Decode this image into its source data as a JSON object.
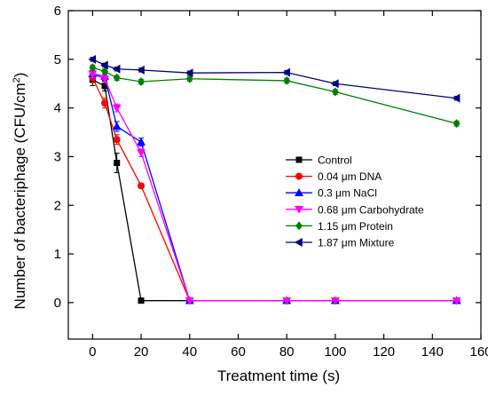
{
  "chart_data": {
    "type": "line",
    "xlabel": "Treatment time (s)",
    "ylabel_parts": [
      "Number of bacteriphage (CFU/cm",
      "2",
      ")"
    ],
    "xlim": [
      -10,
      160
    ],
    "ylim": [
      -0.75,
      6
    ],
    "xticks": [
      0,
      20,
      40,
      60,
      80,
      100,
      120,
      140,
      160
    ],
    "yticks": [
      0,
      1,
      2,
      3,
      4,
      5,
      6
    ],
    "legend_position": "center-right",
    "grid": false,
    "series": [
      {
        "name": "Control",
        "color": "#000000",
        "marker": "square",
        "x": [
          0,
          5,
          10,
          20,
          40,
          80,
          100,
          150
        ],
        "y": [
          4.58,
          4.45,
          2.87,
          0.04,
          0.04,
          0.04,
          0.04,
          0.04
        ],
        "error": [
          0.12,
          0.1,
          0.2,
          0,
          0,
          0,
          0,
          0
        ]
      },
      {
        "name": "0.04 μm DNA",
        "color": "#ff0000",
        "marker": "circle",
        "x": [
          0,
          5,
          10,
          20,
          40,
          80,
          100,
          150
        ],
        "y": [
          4.62,
          4.1,
          3.35,
          2.4,
          0.04,
          0.04,
          0.04,
          0.04
        ],
        "error": [
          0.1,
          0.1,
          0.1,
          0.05,
          0,
          0,
          0,
          0
        ]
      },
      {
        "name": "0.3 μm NaCl",
        "color": "#0000ff",
        "marker": "triangle-up",
        "x": [
          0,
          5,
          10,
          20,
          40,
          80,
          100,
          150
        ],
        "y": [
          4.7,
          4.65,
          3.62,
          3.3,
          0.04,
          0.04,
          0.04,
          0.04
        ],
        "error": [
          0.08,
          0.08,
          0.1,
          0.08,
          0,
          0,
          0,
          0
        ]
      },
      {
        "name": "0.68 μm Carbohydrate",
        "color": "#ff00ff",
        "marker": "triangle-down",
        "x": [
          0,
          5,
          10,
          20,
          40,
          80,
          100,
          150
        ],
        "y": [
          4.7,
          4.6,
          4.0,
          3.08,
          0.04,
          0.04,
          0.04,
          0.04
        ],
        "error": [
          0.08,
          0.08,
          0.08,
          0.08,
          0,
          0,
          0,
          0
        ]
      },
      {
        "name": "1.15 μm Protein",
        "color": "#008000",
        "marker": "diamond",
        "x": [
          0,
          5,
          10,
          20,
          40,
          80,
          100,
          150
        ],
        "y": [
          4.83,
          4.75,
          4.62,
          4.54,
          4.6,
          4.56,
          4.33,
          3.68
        ],
        "error": [
          0.05,
          0.05,
          0.05,
          0.05,
          0.05,
          0.05,
          0.05,
          0.05
        ]
      },
      {
        "name": "1.87 μm Mixture",
        "color": "#000080",
        "marker": "triangle-left",
        "x": [
          0,
          5,
          10,
          20,
          40,
          80,
          100,
          150
        ],
        "y": [
          5.0,
          4.88,
          4.8,
          4.78,
          4.72,
          4.73,
          4.5,
          4.2
        ],
        "error": [
          0.04,
          0.04,
          0.04,
          0.04,
          0.04,
          0.04,
          0.04,
          0.04
        ]
      }
    ]
  }
}
